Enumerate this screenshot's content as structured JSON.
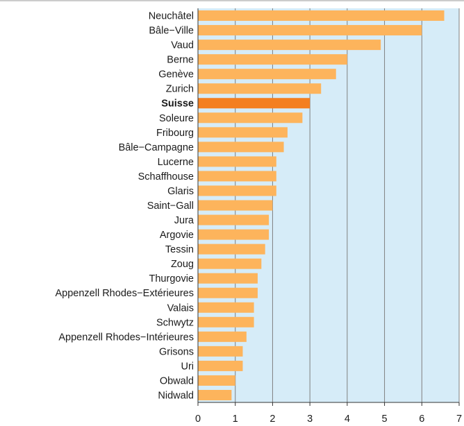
{
  "colors": {
    "bar": "#fdb45c",
    "bar_highlight": "#f47f20",
    "plot_background": "#d6ecf8",
    "grid": "#7f7f7f",
    "axis": "#333333"
  },
  "chart_data": {
    "type": "bar",
    "orientation": "horizontal",
    "title": "",
    "xlabel": "",
    "ylabel": "",
    "xlim": [
      0,
      7
    ],
    "x_ticks": [
      0,
      1,
      2,
      3,
      4,
      5,
      6,
      7
    ],
    "grid": true,
    "highlight_category": "Suisse",
    "categories": [
      "Neuchâtel",
      "Bâle−Ville",
      "Vaud",
      "Berne",
      "Genève",
      "Zurich",
      "Suisse",
      "Soleure",
      "Fribourg",
      "Bâle−Campagne",
      "Lucerne",
      "Schaffhouse",
      "Glaris",
      "Saint−Gall",
      "Jura",
      "Argovie",
      "Tessin",
      "Zoug",
      "Thurgovie",
      "Appenzell Rhodes−Extérieures",
      "Valais",
      "Schwytz",
      "Appenzell Rhodes−Intérieures",
      "Grisons",
      "Uri",
      "Obwald",
      "Nidwald"
    ],
    "values": [
      6.6,
      6.0,
      4.9,
      4.0,
      3.7,
      3.3,
      3.0,
      2.8,
      2.4,
      2.3,
      2.1,
      2.1,
      2.1,
      2.0,
      1.9,
      1.9,
      1.8,
      1.7,
      1.6,
      1.6,
      1.5,
      1.5,
      1.3,
      1.2,
      1.2,
      1.0,
      0.9
    ]
  }
}
